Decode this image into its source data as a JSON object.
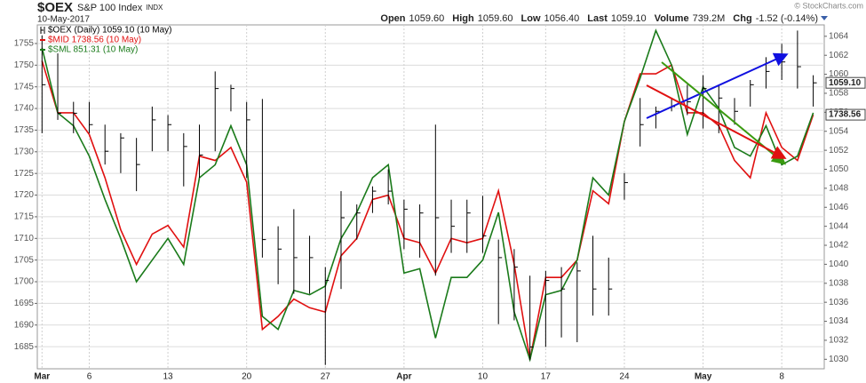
{
  "chart_data": {
    "type": "ohlc",
    "title": "$OEX",
    "subtitle": "S&P 100 Index",
    "exchange": "INDX",
    "date": "10-May-2017",
    "credit": "© StockCharts.com",
    "quote": [
      {
        "label": "Open",
        "value": "1059.60"
      },
      {
        "label": "High",
        "value": "1059.60"
      },
      {
        "label": "Low",
        "value": "1056.40"
      },
      {
        "label": "Last",
        "value": "1059.10"
      },
      {
        "label": "Volume",
        "value": "739.2M"
      },
      {
        "label": "Chg",
        "value": "-1.52 (-0.14%)"
      }
    ],
    "categories": [
      "Mar",
      null,
      null,
      "6",
      null,
      null,
      null,
      null,
      "13",
      null,
      null,
      null,
      null,
      "20",
      null,
      null,
      null,
      null,
      "27",
      null,
      null,
      null,
      null,
      "Apr",
      null,
      null,
      null,
      null,
      "10",
      null,
      null,
      null,
      "17",
      null,
      null,
      null,
      null,
      "24",
      null,
      null,
      null,
      null,
      "May",
      null,
      null,
      null,
      null,
      "8",
      null,
      null
    ],
    "ylim": [
      1679.9,
      1759.3
    ],
    "yticks": [
      1685,
      1690,
      1695,
      1700,
      1705,
      1710,
      1715,
      1720,
      1725,
      1730,
      1735,
      1740,
      1745,
      1750,
      1755
    ],
    "y2lim": [
      1029.0,
      1065.2
    ],
    "y2ticks": [
      1030,
      1032,
      1034,
      1036,
      1038,
      1040,
      1042,
      1044,
      1046,
      1048,
      1050,
      1052,
      1054,
      1056,
      1058,
      1060,
      1062,
      1064
    ],
    "grid": true,
    "series": [
      {
        "name": "$OEX (Daily) 1059.10 (10 May)",
        "color": "#000000",
        "axis": "y2",
        "last_label": "1059.10",
        "high": [
          1064.1,
          1062.2,
          1057.1,
          1057.1,
          1054.7,
          1053.8,
          1053.3,
          1056.6,
          1055.7,
          1053.8,
          1054.7,
          1060.3,
          1058.9,
          1057.1,
          1057.4,
          1044.0,
          1045.8,
          1043.0,
          1039.7,
          1047.7,
          1046.3,
          1048.2,
          1050.0,
          1046.8,
          1046.3,
          1054.7,
          1046.8,
          1046.8,
          1047.2,
          1042.6,
          1041.6,
          1038.8,
          1039.3,
          1039.7,
          1040.2,
          1043.0,
          1040.7,
          1049.6,
          1057.5,
          1056.6,
          1057.5,
          1058.9,
          1059.9,
          1058.9,
          1057.5,
          1059.4,
          1061.8,
          1063.2,
          1064.6,
          1059.9
        ],
        "low": [
          1053.8,
          1055.2,
          1053.8,
          1053.8,
          1050.5,
          1049.6,
          1047.7,
          1051.9,
          1051.9,
          1048.2,
          1049.1,
          1051.9,
          1056.1,
          1049.1,
          1040.7,
          1037.9,
          1036.9,
          1036.9,
          1029.4,
          1037.4,
          1042.6,
          1045.4,
          1046.3,
          1041.6,
          1040.7,
          1038.8,
          1041.2,
          1041.2,
          1041.2,
          1033.7,
          1034.1,
          1029.9,
          1031.3,
          1032.3,
          1031.8,
          1034.6,
          1034.6,
          1046.8,
          1052.4,
          1054.3,
          1056.1,
          1055.7,
          1054.3,
          1053.8,
          1054.7,
          1056.6,
          1058.5,
          1059.4,
          1058.5,
          1056.6
        ],
        "close": [
          1058.9,
          1055.9,
          1055.9,
          1054.7,
          1051.9,
          1053.3,
          1050.5,
          1055.2,
          1054.7,
          1052.4,
          1051.5,
          1058.5,
          1058.5,
          1055.2,
          1042.6,
          1041.6,
          1040.7,
          1040.7,
          1038.3,
          1044.9,
          1045.4,
          1047.7,
          1047.7,
          1045.8,
          1045.4,
          1044.9,
          1044.0,
          1045.4,
          1043.0,
          1040.7,
          1039.7,
          1031.3,
          1038.3,
          1037.4,
          1039.3,
          1037.4,
          1037.4,
          1048.6,
          1054.7,
          1056.1,
          1056.6,
          1057.1,
          1058.5,
          1057.5,
          1056.1,
          1058.9,
          1060.3,
          1061.3,
          1060.8,
          1059.1
        ]
      },
      {
        "name": "$MID 1738.56 (10 May)",
        "color": "#e01010",
        "last_label": "1738.56",
        "values": [
          1751,
          1739,
          1739,
          1734,
          1724,
          1712,
          1704,
          1711,
          1713,
          1708,
          1729,
          1728,
          1731,
          1723,
          1689,
          1692,
          1696,
          1694,
          1693,
          1706,
          1710,
          1719,
          1720,
          1710,
          1709,
          1702,
          1710,
          1709,
          1710,
          1721,
          1704,
          1682,
          1701,
          1701,
          1705,
          1721,
          1718,
          1737,
          1748,
          1748,
          1750,
          1739,
          1739,
          1736,
          1728,
          1724,
          1739,
          1731,
          1728,
          1738.56
        ]
      },
      {
        "name": "$SML 851.31 (10 May)",
        "color": "#1a7a1a",
        "values": [
          1754,
          1739,
          1736,
          1729,
          1719,
          1710,
          1700,
          1705,
          1710,
          1704,
          1724,
          1727,
          1736,
          1727,
          1692,
          1689,
          1698,
          1697,
          1699,
          1710,
          1716,
          1724,
          1727,
          1702,
          1703,
          1687,
          1701,
          1701,
          1705,
          1716,
          1693,
          1682,
          1697,
          1698,
          1705,
          1724,
          1720,
          1737,
          1747,
          1758,
          1750,
          1734,
          1745,
          1740,
          1731,
          1729,
          1736,
          1727,
          1729,
          1739
        ]
      }
    ]
  }
}
